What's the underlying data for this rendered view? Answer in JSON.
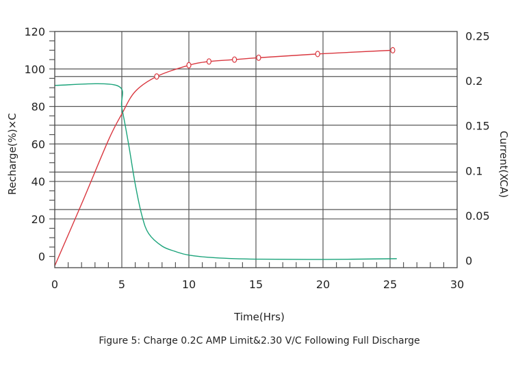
{
  "chart_data": {
    "type": "line",
    "caption": "Figure 5: Charge 0.2C AMP Limit&2.30 V/C Following Full Discharge",
    "xlabel": "Time(Hrs)",
    "ylabel_left": "Recharge(%)×C",
    "ylabel_right": "Current(XCA)",
    "xlim": [
      0,
      30
    ],
    "ylim_left": [
      -6,
      120
    ],
    "ylim_right": [
      -0.008,
      0.255
    ],
    "x_ticks": [
      "0",
      "5",
      "10",
      "15",
      "20",
      "25",
      "30"
    ],
    "y_left_ticks": [
      "0",
      "20",
      "40",
      "60",
      "80",
      "100",
      "120"
    ],
    "y_right_ticks": [
      "0",
      "0.05",
      "0.1",
      "0.15",
      "0.2",
      "0.25"
    ],
    "grid": true,
    "colors": {
      "recharge": "#d9363e",
      "current": "#1aa37a",
      "grid": "#333333"
    },
    "series": [
      {
        "key": "recharge",
        "axis": "left",
        "marker": "diamond-open",
        "x": [
          0,
          2,
          4,
          5,
          6,
          7.6,
          10,
          11.5,
          13.4,
          15.2,
          19.6,
          25.2
        ],
        "y": [
          -5,
          28,
          62,
          76,
          88,
          96,
          102,
          104,
          105,
          106,
          108,
          110
        ],
        "marker_indices": [
          5,
          6,
          7,
          8,
          9,
          10,
          11
        ]
      },
      {
        "key": "current",
        "axis": "right",
        "x": [
          0,
          4.6,
          5,
          5.5,
          6,
          6.5,
          7,
          8,
          9,
          10,
          12,
          15,
          20,
          25.5
        ],
        "y": [
          0.195,
          0.195,
          0.17,
          0.13,
          0.085,
          0.05,
          0.03,
          0.016,
          0.01,
          0.006,
          0.003,
          0.0015,
          0.0012,
          0.002
        ]
      }
    ]
  }
}
